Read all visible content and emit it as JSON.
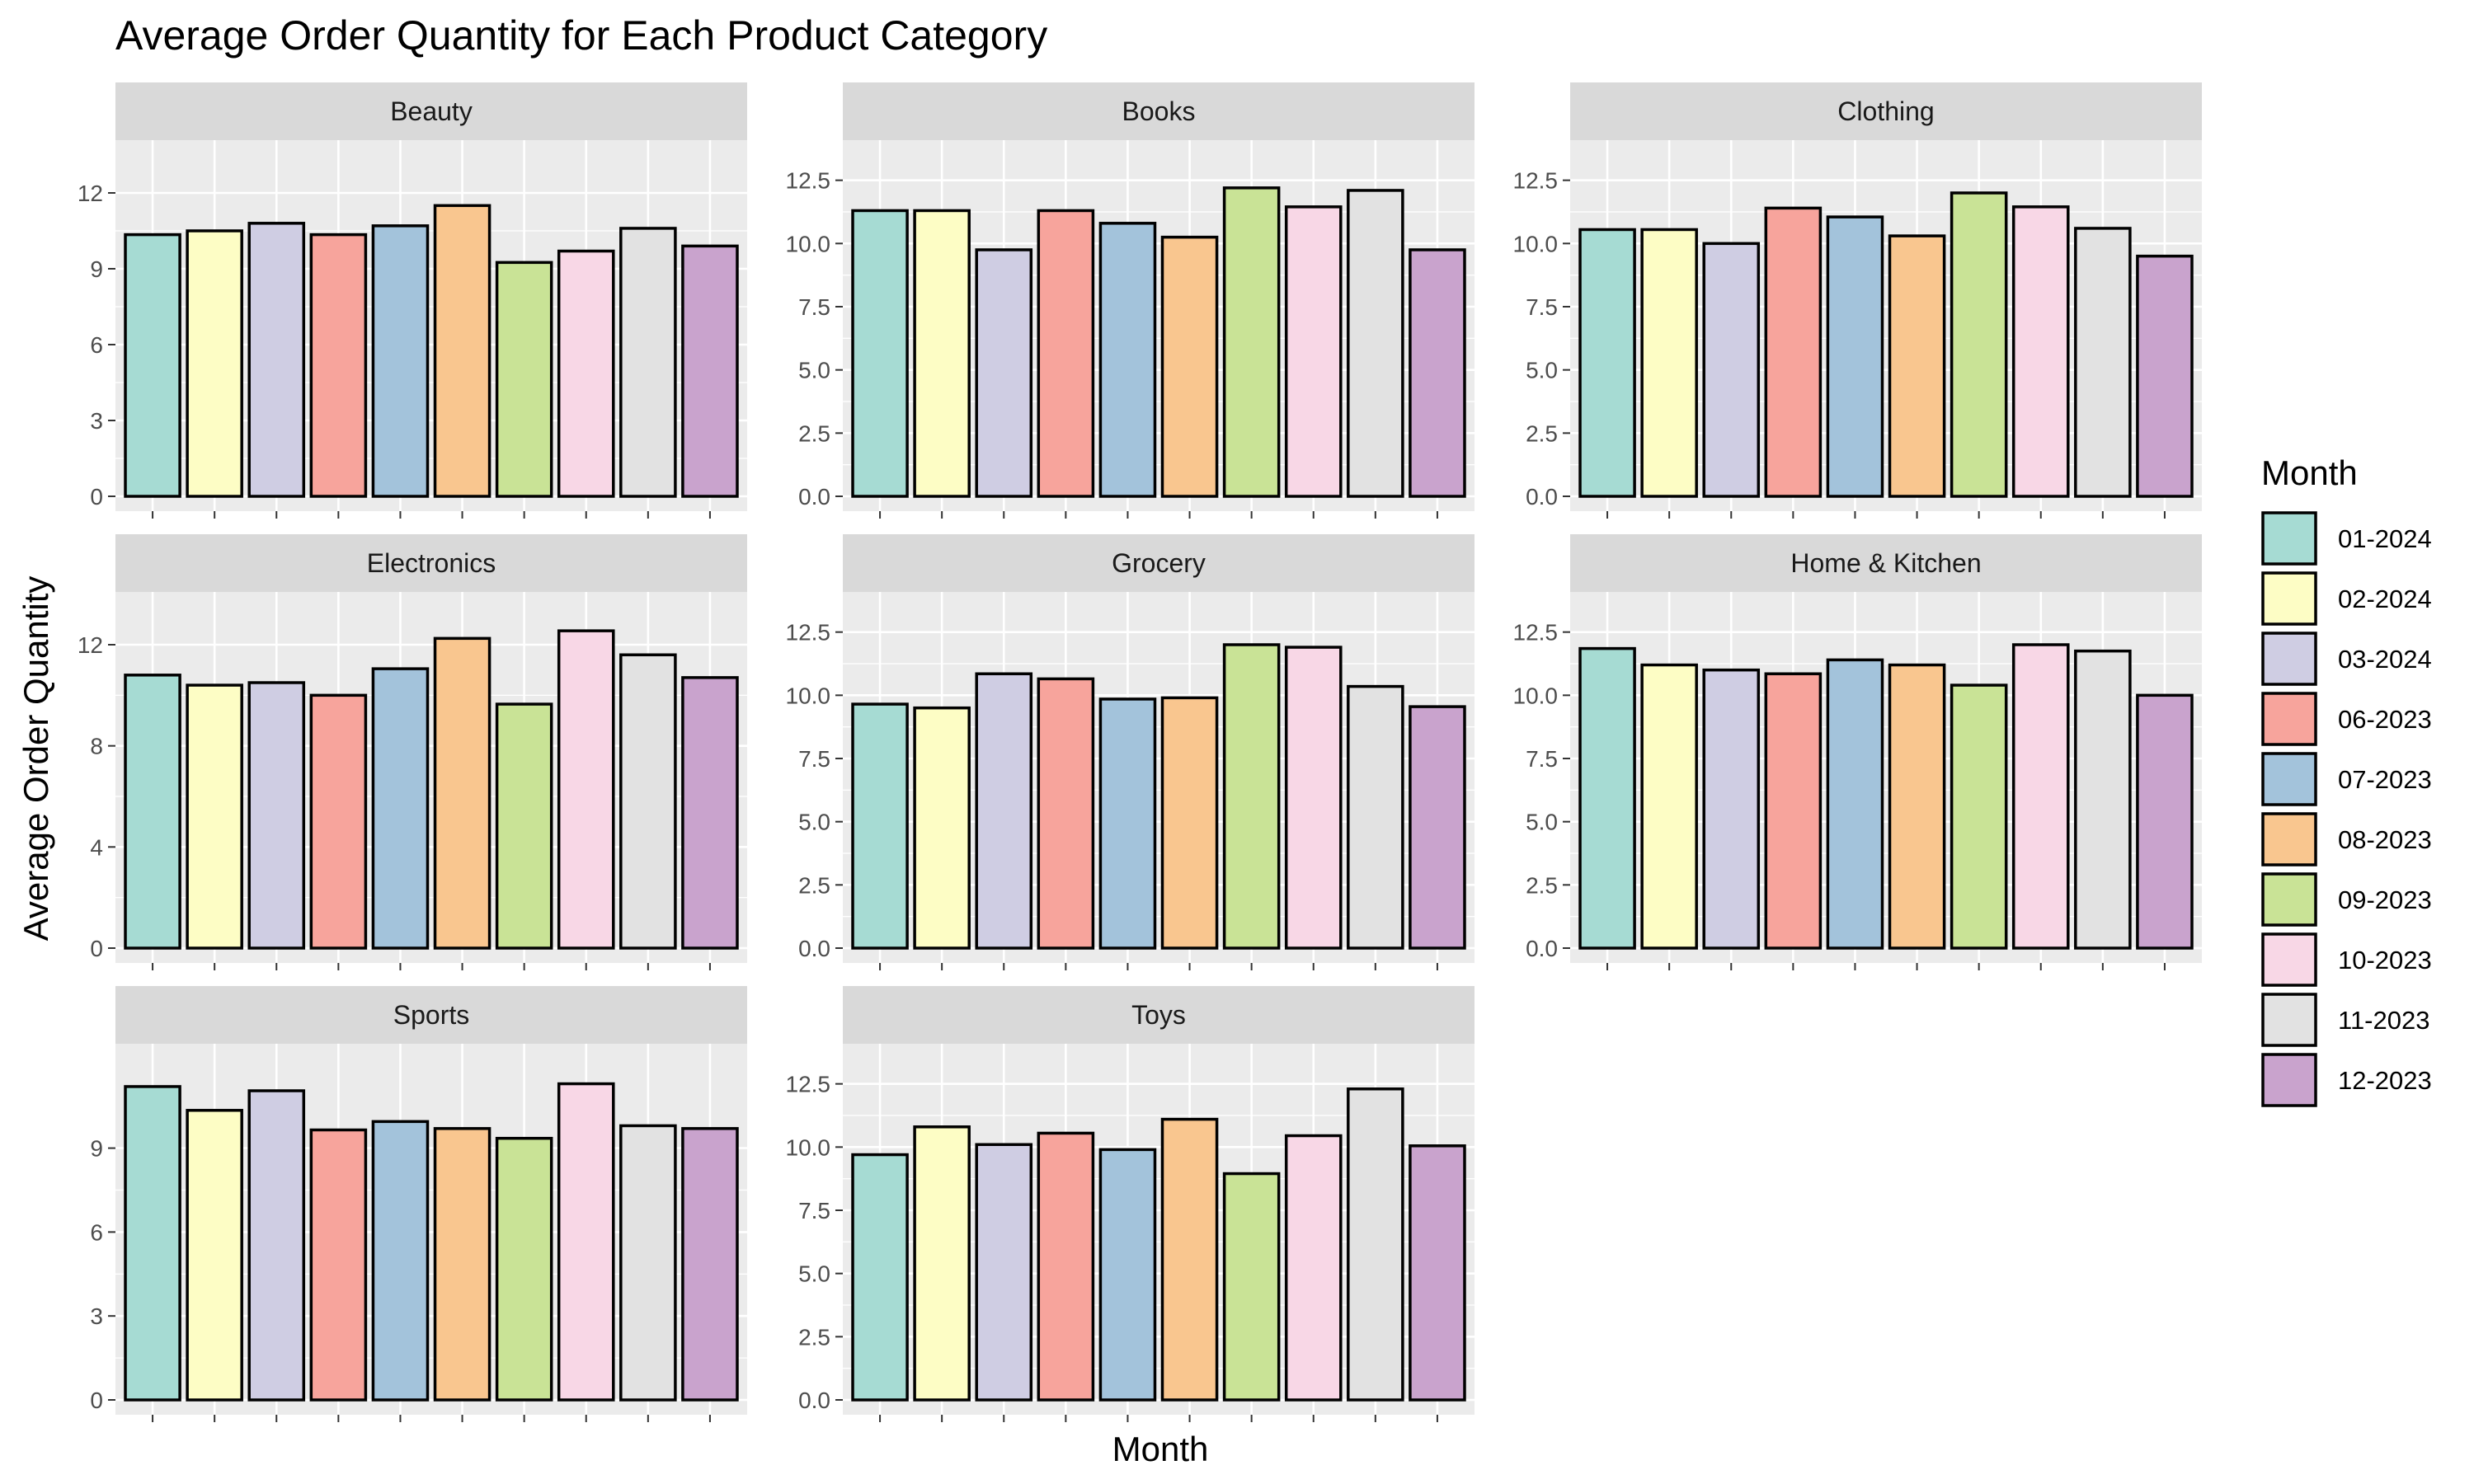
{
  "chart_data": {
    "type": "bar",
    "title": "Average Order Quantity for Each Product Category",
    "xlabel": "Month",
    "ylabel": "Average Order Quantity",
    "legend": {
      "title": "Month",
      "placement": "right",
      "entries": [
        "01-2024",
        "02-2024",
        "03-2024",
        "06-2023",
        "07-2023",
        "08-2023",
        "09-2023",
        "10-2023",
        "11-2023",
        "12-2023"
      ]
    },
    "colors": [
      "#a6dbd3",
      "#fdfdc5",
      "#cfcde3",
      "#f7a49c",
      "#a3c3db",
      "#f9c68f",
      "#c9e396",
      "#f8d7e6",
      "#e2e2e2",
      "#c9a3cd"
    ],
    "grid": true,
    "panels": [
      {
        "name": "Beauty",
        "ylim": [
          0,
          13.5
        ],
        "yticks": [
          0,
          3,
          6,
          9,
          12
        ],
        "ytick_labels": [
          "0",
          "3",
          "6",
          "9",
          "12"
        ],
        "values": [
          10.35,
          10.5,
          10.8,
          10.35,
          10.7,
          11.5,
          9.25,
          9.7,
          10.6,
          9.9
        ]
      },
      {
        "name": "Books",
        "ylim": [
          0,
          13.5
        ],
        "yticks": [
          0,
          2.5,
          5,
          7.5,
          10,
          12.5
        ],
        "ytick_labels": [
          "0.0",
          "2.5",
          "5.0",
          "7.5",
          "10.0",
          "12.5"
        ],
        "values": [
          11.3,
          11.3,
          9.75,
          11.3,
          10.8,
          10.25,
          12.2,
          11.45,
          12.1,
          9.75
        ]
      },
      {
        "name": "Clothing",
        "ylim": [
          0,
          13.5
        ],
        "yticks": [
          0,
          2.5,
          5,
          7.5,
          10,
          12.5
        ],
        "ytick_labels": [
          "0.0",
          "2.5",
          "5.0",
          "7.5",
          "10.0",
          "12.5"
        ],
        "values": [
          10.55,
          10.55,
          10.0,
          11.4,
          11.05,
          10.3,
          12.0,
          11.45,
          10.6,
          9.5
        ]
      },
      {
        "name": "Electronics",
        "ylim": [
          0,
          13.5
        ],
        "yticks": [
          0,
          4,
          8,
          12
        ],
        "ytick_labels": [
          "0",
          "4",
          "8",
          "12"
        ],
        "values": [
          10.8,
          10.4,
          10.5,
          10.0,
          11.05,
          12.25,
          9.65,
          12.55,
          11.6,
          10.7
        ]
      },
      {
        "name": "Grocery",
        "ylim": [
          0,
          13.5
        ],
        "yticks": [
          0,
          2.5,
          5,
          7.5,
          10,
          12.5
        ],
        "ytick_labels": [
          "0.0",
          "2.5",
          "5.0",
          "7.5",
          "10.0",
          "12.5"
        ],
        "values": [
          9.65,
          9.5,
          10.85,
          10.65,
          9.85,
          9.9,
          12.0,
          11.9,
          10.35,
          9.55
        ]
      },
      {
        "name": "Home & Kitchen",
        "ylim": [
          0,
          13.5
        ],
        "yticks": [
          0,
          2.5,
          5,
          7.5,
          10,
          12.5
        ],
        "ytick_labels": [
          "0.0",
          "2.5",
          "5.0",
          "7.5",
          "10.0",
          "12.5"
        ],
        "values": [
          11.85,
          11.2,
          11.0,
          10.85,
          11.4,
          11.2,
          10.4,
          12.0,
          11.75,
          10.0
        ]
      },
      {
        "name": "Sports",
        "ylim": [
          0,
          12.2
        ],
        "yticks": [
          0,
          3,
          6,
          9
        ],
        "ytick_labels": [
          "0",
          "3",
          "6",
          "9"
        ],
        "values": [
          11.2,
          10.35,
          11.05,
          9.65,
          9.95,
          9.7,
          9.35,
          11.3,
          9.8,
          9.7
        ]
      },
      {
        "name": "Toys",
        "ylim": [
          0,
          13.5
        ],
        "yticks": [
          0,
          2.5,
          5,
          7.5,
          10,
          12.5
        ],
        "ytick_labels": [
          "0.0",
          "2.5",
          "5.0",
          "7.5",
          "10.0",
          "12.5"
        ],
        "values": [
          9.7,
          10.8,
          10.1,
          10.55,
          9.9,
          11.1,
          8.95,
          10.45,
          12.3,
          10.05
        ]
      }
    ]
  }
}
